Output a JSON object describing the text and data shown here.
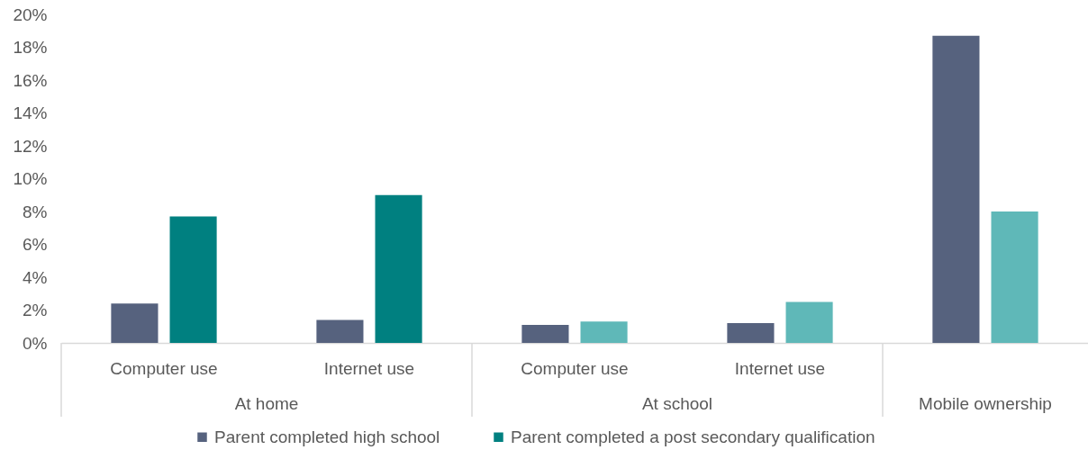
{
  "chart_data": {
    "type": "bar",
    "categories": [
      "Computer use",
      "Internet use",
      "Computer use",
      "Internet use",
      null
    ],
    "annotations": [
      "At home",
      "At school",
      "Mobile ownership"
    ],
    "series": [
      {
        "name": "Parent completed high school",
        "color": "#56627e",
        "values": [
          2.4,
          1.4,
          1.1,
          1.2,
          18.7
        ]
      },
      {
        "name": "Parent completed a post secondary qualification",
        "color": "#008080",
        "colors": [
          "#008080",
          "#008080",
          "#5fb8b8",
          "#5fb8b8",
          "#5fb8b8"
        ],
        "values": [
          7.7,
          9.0,
          1.3,
          2.5,
          8.0
        ]
      }
    ],
    "ylim": [
      0,
      20
    ],
    "yticks": [
      {
        "value": 0,
        "label": "0%"
      },
      {
        "value": 2,
        "label": "2%"
      },
      {
        "value": 4,
        "label": "4%"
      },
      {
        "value": 6,
        "label": "6%"
      },
      {
        "value": 8,
        "label": "8%"
      },
      {
        "value": 10,
        "label": "10%"
      },
      {
        "value": 12,
        "label": "12%"
      },
      {
        "value": 14,
        "label": "14%"
      },
      {
        "value": 16,
        "label": "16%"
      },
      {
        "value": 18,
        "label": "18%"
      },
      {
        "value": 20,
        "label": "20%"
      }
    ],
    "legend": "bottom"
  }
}
